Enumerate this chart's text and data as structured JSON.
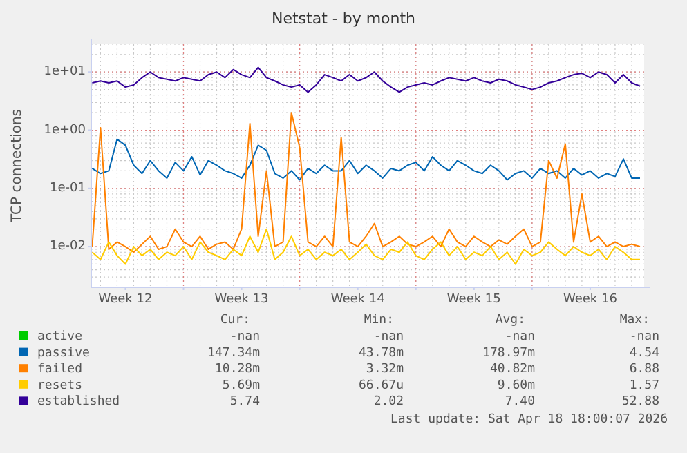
{
  "chart_data": {
    "type": "line",
    "title": "Netstat - by month",
    "ylabel": "TCP connections",
    "log": true,
    "grid": true,
    "legend": "bottom",
    "xlim": [
      "2026-03-16T10:36",
      "2026-04-18T18:00"
    ],
    "xticks": [
      {
        "value": "2026-03-18T12:00",
        "label": "Week 12"
      },
      {
        "value": "2026-03-22T00:00",
        "label": null
      },
      {
        "value": "2026-03-25T12:00",
        "label": "Week 13"
      },
      {
        "value": "2026-03-29T00:00",
        "label": null
      },
      {
        "value": "2026-04-01T12:00",
        "label": "Week 14"
      },
      {
        "value": "2026-04-05T00:00",
        "label": null
      },
      {
        "value": "2026-04-08T12:00",
        "label": "Week 15"
      },
      {
        "value": "2026-04-12T00:00",
        "label": null
      },
      {
        "value": "2026-04-15T12:00",
        "label": "Week 16"
      }
    ],
    "ylim": [
      0.002,
      30
    ],
    "yticks": [
      {
        "value": 0.01,
        "label": "1e-02"
      },
      {
        "value": 0.1,
        "label": "1e-01"
      },
      {
        "value": 1,
        "label": "1e+00"
      },
      {
        "value": 10,
        "label": "1e+01"
      }
    ],
    "x": [
      "2026-03-16T12:00",
      "2026-03-17T00:00",
      "2026-03-17T12:00",
      "2026-03-18T00:00",
      "2026-03-18T12:00",
      "2026-03-19T00:00",
      "2026-03-19T12:00",
      "2026-03-20T00:00",
      "2026-03-20T12:00",
      "2026-03-21T00:00",
      "2026-03-21T12:00",
      "2026-03-22T00:00",
      "2026-03-22T12:00",
      "2026-03-23T00:00",
      "2026-03-23T12:00",
      "2026-03-24T00:00",
      "2026-03-24T12:00",
      "2026-03-25T00:00",
      "2026-03-25T12:00",
      "2026-03-26T00:00",
      "2026-03-26T12:00",
      "2026-03-27T00:00",
      "2026-03-27T12:00",
      "2026-03-28T00:00",
      "2026-03-28T12:00",
      "2026-03-29T00:00",
      "2026-03-29T12:00",
      "2026-03-30T00:00",
      "2026-03-30T12:00",
      "2026-03-31T00:00",
      "2026-03-31T12:00",
      "2026-04-01T00:00",
      "2026-04-01T12:00",
      "2026-04-02T00:00",
      "2026-04-02T12:00",
      "2026-04-03T00:00",
      "2026-04-03T12:00",
      "2026-04-04T00:00",
      "2026-04-04T12:00",
      "2026-04-05T00:00",
      "2026-04-05T12:00",
      "2026-04-06T00:00",
      "2026-04-06T12:00",
      "2026-04-07T00:00",
      "2026-04-07T12:00",
      "2026-04-08T00:00",
      "2026-04-08T12:00",
      "2026-04-09T00:00",
      "2026-04-09T12:00",
      "2026-04-10T00:00",
      "2026-04-10T12:00",
      "2026-04-11T00:00",
      "2026-04-11T12:00",
      "2026-04-12T00:00",
      "2026-04-12T12:00",
      "2026-04-13T00:00",
      "2026-04-13T12:00",
      "2026-04-14T00:00",
      "2026-04-14T12:00",
      "2026-04-15T00:00",
      "2026-04-15T12:00",
      "2026-04-16T00:00",
      "2026-04-16T12:00",
      "2026-04-17T00:00",
      "2026-04-17T12:00",
      "2026-04-18T00:00",
      "2026-04-18T12:00"
    ],
    "series": [
      {
        "name": "active",
        "color": "#00cc00",
        "values": [
          null,
          null,
          null,
          null,
          null,
          null,
          null,
          null,
          null,
          null,
          null,
          null,
          null,
          null,
          null,
          null,
          null,
          null,
          null,
          null,
          null,
          null,
          null,
          null,
          null,
          null,
          null,
          null,
          null,
          null,
          null,
          null,
          null,
          null,
          null,
          null,
          null,
          null,
          null,
          null,
          null,
          null,
          null,
          null,
          null,
          null,
          null,
          null,
          null,
          null,
          null,
          null,
          null,
          null,
          null,
          null,
          null,
          null,
          null,
          null,
          null,
          null,
          null,
          null,
          null,
          null,
          null
        ]
      },
      {
        "name": "passive",
        "color": "#0066b3",
        "values": [
          0.22,
          0.18,
          0.2,
          0.7,
          0.55,
          0.25,
          0.18,
          0.3,
          0.2,
          0.15,
          0.28,
          0.2,
          0.35,
          0.17,
          0.3,
          0.25,
          0.2,
          0.18,
          0.15,
          0.25,
          0.55,
          0.45,
          0.18,
          0.15,
          0.2,
          0.14,
          0.22,
          0.18,
          0.25,
          0.2,
          0.2,
          0.3,
          0.18,
          0.25,
          0.2,
          0.15,
          0.22,
          0.2,
          0.25,
          0.28,
          0.2,
          0.35,
          0.25,
          0.2,
          0.3,
          0.25,
          0.2,
          0.18,
          0.25,
          0.2,
          0.14,
          0.18,
          0.2,
          0.15,
          0.22,
          0.18,
          0.2,
          0.15,
          0.22,
          0.17,
          0.2,
          0.15,
          0.18,
          0.16,
          0.32,
          0.15,
          0.15
        ]
      },
      {
        "name": "failed",
        "color": "#ff8000",
        "values": [
          0.01,
          1.1,
          0.009,
          0.012,
          0.01,
          0.008,
          0.011,
          0.015,
          0.009,
          0.01,
          0.02,
          0.012,
          0.01,
          0.015,
          0.009,
          0.011,
          0.012,
          0.009,
          0.02,
          1.3,
          0.015,
          0.2,
          0.01,
          0.012,
          2.0,
          0.5,
          0.012,
          0.01,
          0.015,
          0.01,
          0.75,
          0.012,
          0.01,
          0.015,
          0.025,
          0.01,
          0.012,
          0.015,
          0.011,
          0.01,
          0.012,
          0.015,
          0.01,
          0.02,
          0.012,
          0.01,
          0.015,
          0.012,
          0.01,
          0.013,
          0.011,
          0.015,
          0.02,
          0.01,
          0.012,
          0.3,
          0.15,
          0.58,
          0.012,
          0.08,
          0.012,
          0.015,
          0.01,
          0.012,
          0.01,
          0.011,
          0.01
        ]
      },
      {
        "name": "resets",
        "color": "#ffcc00",
        "values": [
          0.008,
          0.006,
          0.012,
          0.007,
          0.005,
          0.01,
          0.007,
          0.009,
          0.006,
          0.008,
          0.007,
          0.01,
          0.006,
          0.012,
          0.008,
          0.007,
          0.006,
          0.009,
          0.007,
          0.015,
          0.008,
          0.02,
          0.006,
          0.008,
          0.015,
          0.007,
          0.009,
          0.006,
          0.008,
          0.007,
          0.009,
          0.006,
          0.008,
          0.011,
          0.007,
          0.006,
          0.009,
          0.008,
          0.012,
          0.007,
          0.006,
          0.009,
          0.012,
          0.007,
          0.01,
          0.006,
          0.008,
          0.007,
          0.01,
          0.006,
          0.008,
          0.005,
          0.009,
          0.007,
          0.008,
          0.012,
          0.009,
          0.007,
          0.01,
          0.008,
          0.007,
          0.009,
          0.006,
          0.01,
          0.008,
          0.006,
          0.006
        ]
      },
      {
        "name": "established",
        "color": "#330099",
        "values": [
          6.5,
          7,
          6.5,
          7,
          5.5,
          6,
          8,
          10,
          8,
          7.5,
          7,
          8,
          7.5,
          7,
          9,
          10,
          8,
          11,
          9,
          8,
          12,
          8,
          7,
          6,
          5.5,
          6,
          4.5,
          6,
          9,
          8,
          7,
          9,
          7,
          8,
          10,
          7,
          5.5,
          4.5,
          5.5,
          6,
          6.5,
          6,
          7,
          8,
          7.5,
          7,
          8,
          7,
          6.5,
          7.5,
          7,
          6,
          5.5,
          5,
          5.5,
          6.5,
          7,
          8,
          9,
          9.5,
          8,
          10,
          9,
          6.5,
          9,
          6.5,
          5.7
        ]
      }
    ],
    "annotations": [
      "Cur:",
      "Min:",
      "Avg:",
      "Max:",
      "-nan",
      "-nan",
      "-nan",
      "-nan",
      "147.34m",
      "43.78m",
      "178.97m",
      "4.54",
      "10.28m",
      "3.32m",
      "40.82m",
      "6.88",
      "5.69m",
      "66.67u",
      "9.60m",
      "1.57",
      "5.74",
      "2.02",
      "7.40",
      "52.88",
      "Last update: Sat Apr 18 18:00:07 2026"
    ]
  }
}
